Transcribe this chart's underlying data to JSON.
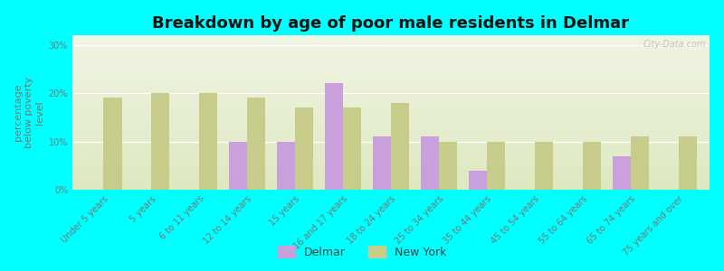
{
  "title": "Breakdown by age of poor male residents in Delmar",
  "ylabel": "percentage\nbelow poverty\nlevel",
  "background_color": "#00FFFF",
  "plot_bg_top": "#f0f4e4",
  "plot_bg_bottom": "#dde8c0",
  "categories": [
    "Under 5 years",
    "5 years",
    "6 to 11 years",
    "12 to 14 years",
    "15 years",
    "16 and 17 years",
    "18 to 24 years",
    "25 to 34 years",
    "35 to 44 years",
    "45 to 54 years",
    "55 to 64 years",
    "65 to 74 years",
    "75 years and over"
  ],
  "delmar_values": [
    0,
    0,
    0,
    10,
    10,
    22,
    11,
    11,
    4,
    0,
    0,
    7,
    0
  ],
  "newyork_values": [
    19,
    20,
    20,
    19,
    17,
    17,
    18,
    10,
    10,
    10,
    10,
    11,
    11
  ],
  "delmar_color": "#c9a0dc",
  "newyork_color": "#c8cc8a",
  "bar_width": 0.38,
  "ylim": [
    0,
    32
  ],
  "yticks": [
    0,
    10,
    20,
    30
  ],
  "ytick_labels": [
    "0%",
    "10%",
    "20%",
    "30%"
  ],
  "title_fontsize": 13,
  "axis_label_fontsize": 8,
  "tick_fontsize": 7,
  "legend_fontsize": 9,
  "watermark": "City-Data.com"
}
